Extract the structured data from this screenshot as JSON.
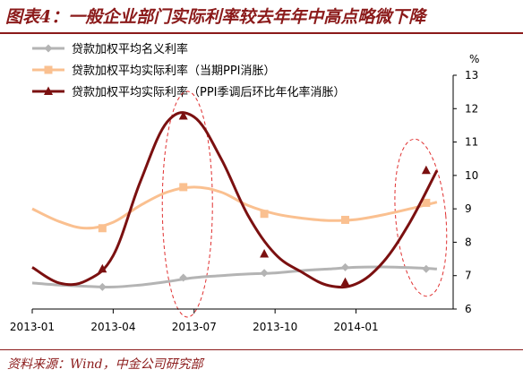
{
  "title": "图表4：一般企业部门实际利率较去年年中高点略微下降",
  "source": "资料来源：Wind，中金公司研究部",
  "chart_data": {
    "type": "line",
    "unit_label": "%",
    "ylim": [
      6,
      13
    ],
    "y_ticks": [
      6,
      7,
      8,
      9,
      10,
      11,
      12,
      13
    ],
    "y_axis_side": "right",
    "x_tick_labels": [
      "2013-01",
      "2013-04",
      "2013-07",
      "2013-10",
      "2014-01"
    ],
    "x_ticks": [
      0,
      3,
      6,
      9,
      12
    ],
    "xlim": [
      0,
      15.6
    ],
    "legend_position": "top-left",
    "series": [
      {
        "name": "贷款加权平均名义利率",
        "color": "#b4b4b4",
        "marker": "diamond",
        "x": [
          0,
          1,
          2,
          3,
          4,
          5,
          6,
          7,
          8,
          9,
          10,
          11,
          12,
          13,
          14,
          15
        ],
        "values": [
          6.78,
          6.72,
          6.68,
          6.66,
          6.72,
          6.82,
          6.94,
          7.0,
          7.05,
          7.08,
          7.15,
          7.2,
          7.25,
          7.26,
          7.24,
          7.2
        ],
        "marker_x": [
          2.6,
          5.6,
          8.6,
          11.6,
          14.6
        ],
        "marker_y": [
          6.66,
          6.94,
          7.08,
          7.25,
          7.2
        ]
      },
      {
        "name": "贷款加权平均实际利率（当期PPI消胀）",
        "color": "#fac090",
        "marker": "square",
        "x": [
          0,
          1,
          2,
          3,
          4,
          5,
          6,
          7,
          8,
          9,
          10,
          11,
          12,
          13,
          14,
          15
        ],
        "values": [
          9.0,
          8.62,
          8.42,
          8.6,
          9.1,
          9.5,
          9.65,
          9.5,
          9.1,
          8.85,
          8.72,
          8.65,
          8.68,
          8.82,
          9.0,
          9.2
        ],
        "marker_x": [
          2.6,
          5.6,
          8.6,
          11.6,
          14.6
        ],
        "marker_y": [
          8.42,
          9.65,
          8.85,
          8.67,
          9.18
        ]
      },
      {
        "name": "贷款加权平均实际利率（PPI季调后环比年化率消胀）",
        "color": "#7b1010",
        "marker": "triangle",
        "x": [
          0,
          1,
          2,
          3,
          4,
          5,
          6,
          7,
          8,
          9,
          10,
          11,
          12,
          13,
          14,
          15
        ],
        "values": [
          7.25,
          6.78,
          6.85,
          7.6,
          9.8,
          11.6,
          11.75,
          10.5,
          8.8,
          7.65,
          7.1,
          6.7,
          6.75,
          7.4,
          8.6,
          10.15
        ],
        "marker_x": [
          2.6,
          5.6,
          8.6,
          11.6,
          14.6
        ],
        "marker_y": [
          7.2,
          11.78,
          7.65,
          6.8,
          10.15
        ]
      }
    ]
  }
}
